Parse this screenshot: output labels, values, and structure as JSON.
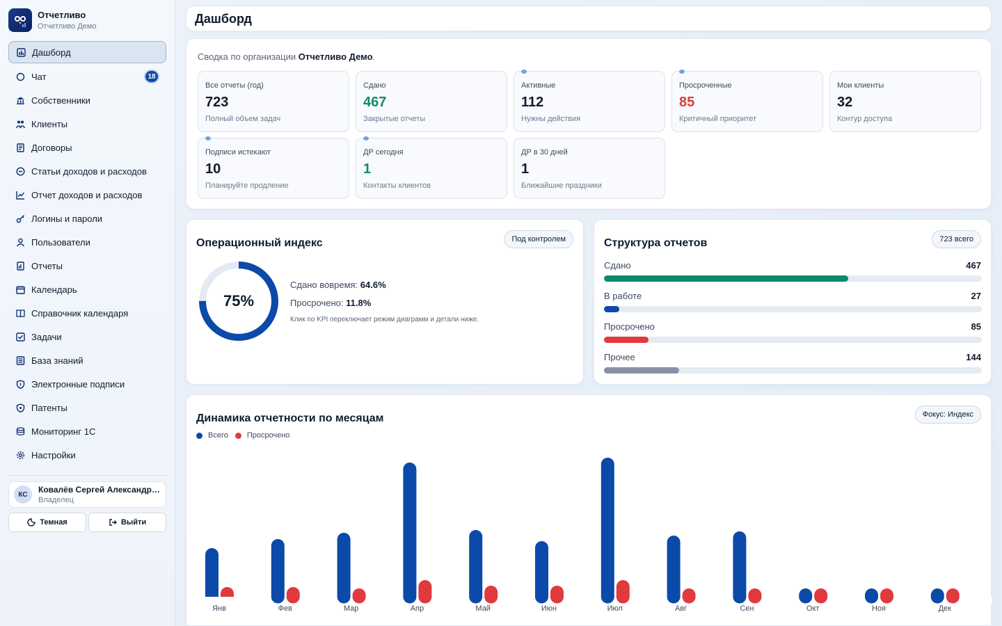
{
  "brand": {
    "name": "Отчетливо",
    "subtitle": "Отчетливо Демо"
  },
  "sidebar": {
    "items": [
      {
        "label": "Дашборд",
        "icon": "dashboard-icon",
        "active": true
      },
      {
        "label": "Чат",
        "icon": "chat-icon",
        "badge": "18"
      },
      {
        "label": "Собственники",
        "icon": "bank-icon"
      },
      {
        "label": "Клиенты",
        "icon": "users-icon"
      },
      {
        "label": "Договоры",
        "icon": "contract-icon"
      },
      {
        "label": "Статьи доходов и расходов",
        "icon": "money-icon"
      },
      {
        "label": "Отчет доходов и расходов",
        "icon": "chart-icon"
      },
      {
        "label": "Логины и пароли",
        "icon": "key-icon"
      },
      {
        "label": "Пользователи",
        "icon": "user-icon"
      },
      {
        "label": "Отчеты",
        "icon": "report-icon"
      },
      {
        "label": "Календарь",
        "icon": "calendar-icon"
      },
      {
        "label": "Справочник календаря",
        "icon": "book-icon"
      },
      {
        "label": "Задачи",
        "icon": "checkbox-icon"
      },
      {
        "label": "База знаний",
        "icon": "knowledge-icon"
      },
      {
        "label": "Электронные подписи",
        "icon": "shield-icon"
      },
      {
        "label": "Патенты",
        "icon": "patent-icon"
      },
      {
        "label": "Мониторинг 1С",
        "icon": "database-icon"
      },
      {
        "label": "Настройки",
        "icon": "gear-icon"
      }
    ],
    "user": {
      "initials": "КС",
      "name": "Ковалёв Сергей Александрович",
      "role": "Владелец"
    },
    "theme_label": "Темная",
    "logout_label": "Выйти"
  },
  "header": {
    "title": "Дашборд"
  },
  "summary": {
    "prefix": "Сводка по организации",
    "org": "Отчетливо Демо",
    "suffix": ".",
    "kpis": [
      {
        "label": "Все отчеты (год)",
        "value": "723",
        "sub": "Полный объем задач",
        "color": "#0f1c2e",
        "dot": false
      },
      {
        "label": "Сдано",
        "value": "467",
        "sub": "Закрытые отчеты",
        "color": "#138a63",
        "dot": false
      },
      {
        "label": "Активные",
        "value": "112",
        "sub": "Нужны действия",
        "color": "#0f1c2e",
        "dot": true
      },
      {
        "label": "Просроченные",
        "value": "85",
        "sub": "Критичный приоритет",
        "color": "#e03a3e",
        "dot": true
      },
      {
        "label": "Мои клиенты",
        "value": "32",
        "sub": "Контур доступа",
        "color": "#0f1c2e",
        "dot": false
      },
      {
        "label": "Подписи истекают",
        "value": "10",
        "sub": "Планируйте продление",
        "color": "#0f1c2e",
        "dot": true
      },
      {
        "label": "ДР сегодня",
        "value": "1",
        "sub": "Контакты клиентов",
        "color": "#138a63",
        "dot": true
      },
      {
        "label": "ДР в 30 дней",
        "value": "1",
        "sub": "Ближайшие праздники",
        "color": "#0f1c2e",
        "dot": false
      }
    ]
  },
  "ops": {
    "title": "Операционный индекс",
    "pill": "Под контролем",
    "index_percent": 75,
    "index_label": "75%",
    "ontime_label": "Сдано вовремя:",
    "ontime_value": "64.6%",
    "overdue_label": "Просрочено:",
    "overdue_value": "11.8%",
    "note": "Клик по KPI переключает режим диаграмм и детали ниже.",
    "accent": "#0b4aa8"
  },
  "structure": {
    "title": "Структура отчетов",
    "pill": "723 всего",
    "total": 723,
    "rows": [
      {
        "label": "Сдано",
        "value": 467,
        "color": "#0e8a6a"
      },
      {
        "label": "В работе",
        "value": 27,
        "color": "#0b4aa8"
      },
      {
        "label": "Просрочено",
        "value": 85,
        "color": "#e03a3e"
      },
      {
        "label": "Прочее",
        "value": 144,
        "color": "#8592a6"
      }
    ]
  },
  "dynamics": {
    "title": "Динамика отчетности по месяцам",
    "pill": "Фокус: Индекс",
    "chart_data": {
      "type": "bar",
      "categories": [
        "Янв",
        "Фев",
        "Мар",
        "Апр",
        "Май",
        "Июн",
        "Июл",
        "Авг",
        "Сен",
        "Окт",
        "Ноя",
        "Дек"
      ],
      "series": [
        {
          "name": "Всего",
          "color": "#0b4aa8",
          "values": [
            70,
            83,
            92,
            193,
            96,
            80,
            200,
            88,
            94,
            12,
            12,
            12
          ]
        },
        {
          "name": "Просрочено",
          "color": "#e03a3e",
          "values": [
            14,
            14,
            12,
            24,
            16,
            16,
            24,
            12,
            12,
            12,
            12,
            12
          ]
        }
      ],
      "ylim": [
        0,
        200
      ]
    }
  }
}
